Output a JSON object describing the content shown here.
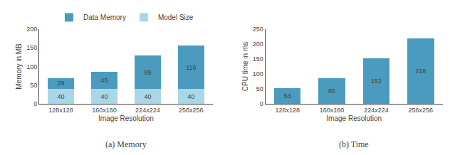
{
  "chart_data": [
    {
      "type": "bar",
      "title": "(a) Memory",
      "categories": [
        "128x128",
        "160x160",
        "224x224",
        "256x256"
      ],
      "series": [
        {
          "name": "Model Size",
          "color": "#a8d8e8",
          "values": [
            40,
            40,
            40,
            40
          ]
        },
        {
          "name": "Data Memory",
          "color": "#4b9bbf",
          "values": [
            29,
            45,
            89,
            116
          ]
        }
      ],
      "stacked": true,
      "data_labels": true,
      "legend": "top",
      "grid": false,
      "xlabel": "Image Resolution",
      "ylabel": "Memory in MB",
      "ylim": [
        0,
        200
      ],
      "yticks": [
        0,
        50,
        100,
        150,
        200
      ]
    },
    {
      "type": "bar",
      "title": "(b) Time",
      "categories": [
        "128x128",
        "160x160",
        "224x224",
        "256x256"
      ],
      "values": [
        53,
        85,
        152,
        218
      ],
      "color": "#4b9bbf",
      "data_labels": true,
      "grid": false,
      "xlabel": "Image Resolution",
      "ylabel": "CPU time in ms",
      "ylim": [
        0,
        250
      ],
      "yticks": [
        0,
        50,
        100,
        150,
        200,
        250
      ]
    }
  ]
}
